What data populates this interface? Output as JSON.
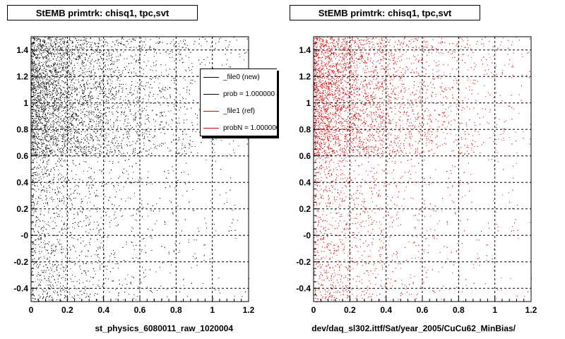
{
  "colors": {
    "new": "#000000",
    "ref": "#dd0000"
  },
  "footer": {
    "text": ""
  },
  "legend": {
    "items": [
      {
        "label": "_file0 (new)",
        "color": "#000000"
      },
      {
        "label": "prob = 1.000000",
        "color": "#000000"
      },
      {
        "label": "_file1 (ref)",
        "color": "#dd0000"
      },
      {
        "label": "probN = 1.000000",
        "color": "#dd0000"
      }
    ]
  },
  "chart_data": [
    {
      "type": "scatter",
      "title": "StEMB primtrk: chisq1, tpc,svt",
      "xlabel": "st_physics_6080011_raw_1020004",
      "ylabel": "",
      "xlim": [
        0,
        1.2
      ],
      "ylim": [
        -0.5,
        1.5
      ],
      "xticks": [
        "0",
        "0.2",
        "0.4",
        "0.6",
        "0.8",
        "1",
        "1.2"
      ],
      "yticks": [
        "-0.4",
        "-0.2",
        "-0",
        "0.2",
        "0.4",
        "0.6",
        "0.8",
        "1",
        "1.2",
        "1.4"
      ],
      "grid": true,
      "series": [
        {
          "color": "#000000",
          "density": "high near x=0, decreasing with x; denser at y>0.6"
        }
      ]
    },
    {
      "type": "scatter",
      "title": "StEMB primtrk: chisq1, tpc,svt",
      "xlabel": "dev/daq_sl302.ittf/Sat/year_2005/CuCu62_MinBias/",
      "ylabel": "",
      "xlim": [
        0,
        1.2
      ],
      "ylim": [
        -0.5,
        1.5
      ],
      "xticks": [
        "0",
        "0.2",
        "0.4",
        "0.6",
        "0.8",
        "1",
        "1.2"
      ],
      "yticks": [
        "-0.4",
        "-0.2",
        "-0",
        "0.2",
        "0.4",
        "0.6",
        "0.8",
        "1",
        "1.2",
        "1.4"
      ],
      "grid": true,
      "series": [
        {
          "color": "#dd0000",
          "density": "high near x=0, decreasing with x; denser at y>0.6"
        }
      ]
    }
  ]
}
